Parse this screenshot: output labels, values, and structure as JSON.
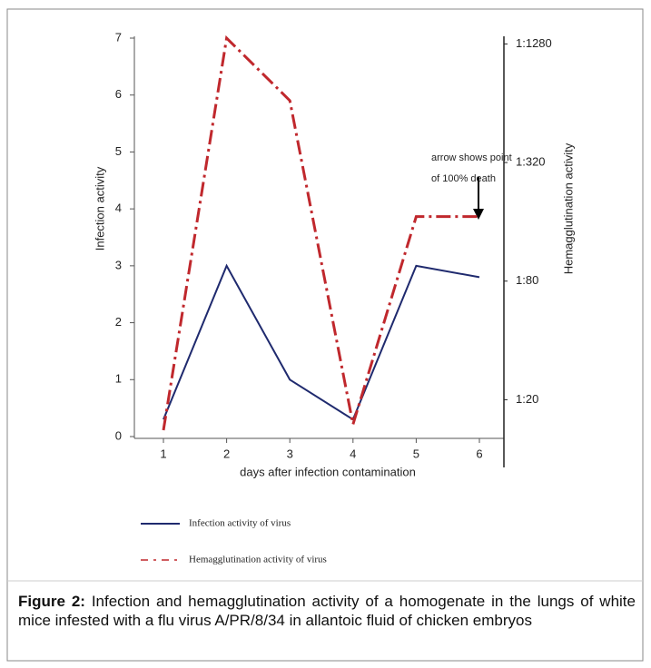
{
  "chart_data": {
    "type": "line",
    "x_label": "days after infection contamination",
    "y_label": "Infection activity",
    "y2_label": "Hemagglutination activity",
    "categories": [
      "1",
      "2",
      "3",
      "4",
      "5",
      "6"
    ],
    "series": [
      {
        "name": "Infection activity of virus",
        "color": "#1f2a6e",
        "values": [
          0.3,
          3,
          1,
          0.3,
          3,
          2.8
        ]
      },
      {
        "name": "Hemagglutination activity of virus",
        "color": "#c0282d",
        "axis": "y2",
        "values": [
          14,
          1370,
          660,
          15,
          170,
          170
        ]
      }
    ],
    "ylim": [
      0,
      7
    ],
    "yticks": [
      0,
      1,
      2,
      3,
      4,
      5,
      6,
      7
    ],
    "y2lim": [
      13,
      1370
    ],
    "y2scale": "log",
    "y2ticks": [
      {
        "value": 20,
        "label": "1:20"
      },
      {
        "value": 80,
        "label": "1:80"
      },
      {
        "value": 320,
        "label": "1:320"
      },
      {
        "value": 1280,
        "label": "1:1280"
      }
    ],
    "annotations": [
      "arrow shows point",
      "of 100% death"
    ]
  },
  "caption": {
    "label": "Figure 2:",
    "text": "Infection and hemagglutination activity of a homogenate in the lungs of white mice infested with a flu virus A/PR/8/34 in allantoic fluid of chicken embryos"
  }
}
